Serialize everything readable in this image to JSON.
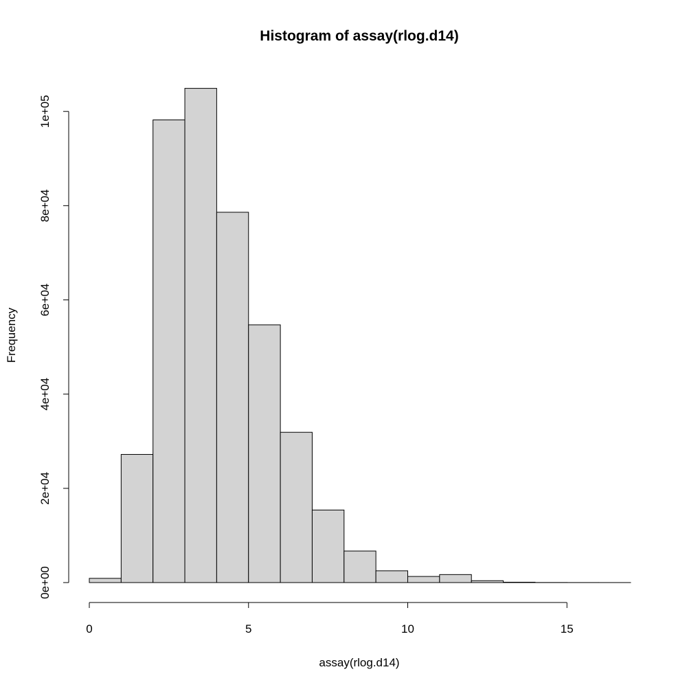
{
  "chart_data": {
    "type": "bar",
    "subtype": "histogram",
    "title": "Histogram of assay(rlog.d14)",
    "xlabel": "assay(rlog.d14)",
    "ylabel": "Frequency",
    "bin_edges": [
      0,
      1,
      2,
      3,
      4,
      5,
      6,
      7,
      8,
      9,
      10,
      11,
      12,
      13,
      14,
      15,
      16,
      17
    ],
    "values": [
      900,
      27200,
      98200,
      104900,
      78600,
      54700,
      31900,
      15400,
      6700,
      2500,
      1300,
      1700,
      400,
      80,
      20,
      10,
      5
    ],
    "xlim": [
      0,
      17
    ],
    "ylim": [
      0,
      105000
    ],
    "x_ticks": [
      0,
      5,
      10,
      15
    ],
    "x_tick_labels": [
      "0",
      "5",
      "10",
      "15"
    ],
    "y_ticks": [
      0,
      20000,
      40000,
      60000,
      80000,
      100000
    ],
    "y_tick_labels": [
      "0e+00",
      "2e+04",
      "4e+04",
      "6e+04",
      "8e+04",
      "1e+05"
    ],
    "bar_color": "#d3d3d3",
    "grid": false,
    "legend": "none"
  }
}
